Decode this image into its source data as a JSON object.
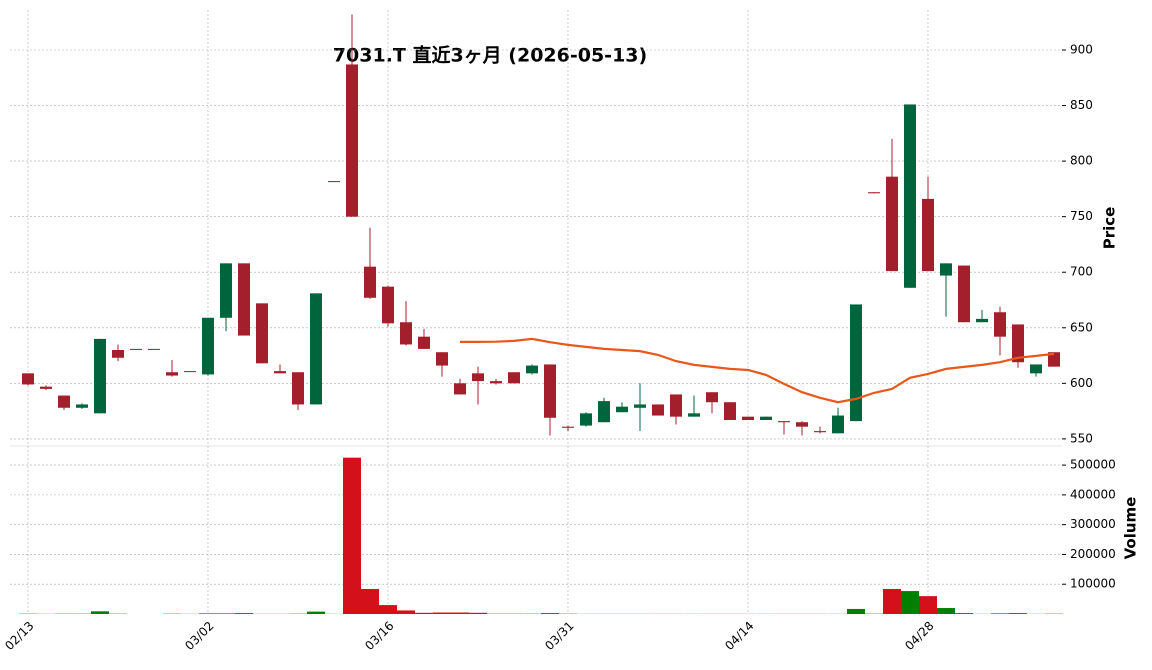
{
  "chart_data": {
    "type": "candlestick",
    "title": "7031.T  直近3ヶ月  (2026-05-13)",
    "ylabel": "Price",
    "categories": [
      "02/13",
      null,
      null,
      null,
      null,
      null,
      null,
      null,
      null,
      null,
      "03/02",
      null,
      null,
      null,
      null,
      null,
      null,
      null,
      null,
      null,
      "03/16",
      null,
      null,
      null,
      null,
      null,
      null,
      null,
      null,
      null,
      "03/31",
      null,
      null,
      null,
      null,
      null,
      null,
      null,
      null,
      null,
      "04/14",
      null,
      null,
      null,
      null,
      null,
      null,
      null,
      null,
      null,
      "04/28",
      null,
      null,
      null,
      null,
      null,
      null,
      null
    ],
    "open": [
      609,
      597,
      589,
      578,
      573,
      630,
      631,
      631,
      610,
      611,
      608,
      659,
      708,
      672,
      611,
      610,
      581,
      782,
      887,
      705,
      687,
      655,
      642,
      628,
      600,
      609,
      602,
      610,
      609,
      617,
      561,
      562,
      565,
      574,
      578,
      581,
      590,
      570,
      592,
      583,
      570,
      567,
      566,
      565,
      557,
      555,
      566,
      772,
      786,
      686,
      766,
      697,
      706,
      655,
      664,
      653,
      609,
      628
    ],
    "high": [
      609,
      598,
      589,
      582,
      640,
      635,
      631,
      631,
      621,
      611,
      659,
      708,
      708,
      672,
      617,
      610,
      681,
      782,
      932,
      740,
      688,
      674,
      649,
      628,
      604,
      615,
      604,
      610,
      617,
      617,
      562,
      574,
      587,
      583,
      600,
      581,
      590,
      589,
      592,
      583,
      570,
      570,
      566,
      566,
      561,
      578,
      671,
      772,
      820,
      851,
      786,
      708,
      706,
      666,
      669,
      653,
      617,
      628
    ],
    "low": [
      598,
      594,
      576,
      577,
      573,
      620,
      631,
      631,
      606,
      611,
      607,
      647,
      643,
      618,
      609,
      576,
      581,
      782,
      750,
      676,
      651,
      634,
      631,
      606,
      590,
      581,
      599,
      600,
      608,
      553,
      557,
      561,
      565,
      574,
      557,
      571,
      563,
      570,
      573,
      567,
      567,
      567,
      554,
      553,
      555,
      555,
      566,
      771,
      701,
      686,
      701,
      660,
      655,
      655,
      625,
      614,
      606,
      615
    ],
    "close": [
      599,
      595,
      578,
      581,
      640,
      623,
      631,
      631,
      607,
      611,
      659,
      708,
      643,
      618,
      609,
      581,
      681,
      782,
      750,
      677,
      654,
      635,
      631,
      616,
      590,
      602,
      600,
      600,
      616,
      569,
      560,
      573,
      584,
      579,
      581,
      571,
      570,
      573,
      583,
      567,
      567,
      570,
      565,
      561,
      556,
      571,
      671,
      771,
      701,
      851,
      701,
      708,
      655,
      658,
      642,
      619,
      617,
      615
    ],
    "up_color": "#00643c",
    "down_color": "#a41f2c",
    "moving_average": {
      "color": "#e8581a",
      "values": [
        null,
        null,
        null,
        null,
        null,
        null,
        null,
        null,
        null,
        null,
        null,
        null,
        null,
        null,
        null,
        null,
        null,
        null,
        null,
        null,
        null,
        null,
        null,
        null,
        637.3,
        637.3,
        637.5,
        638.2,
        640,
        637,
        634.6,
        632.8,
        631,
        630,
        629,
        625.6,
        620,
        616.6,
        614.8,
        613,
        612,
        607.6,
        599.5,
        592,
        587,
        583,
        586,
        591.4,
        595,
        605,
        608.5,
        613,
        614.8,
        616.6,
        619,
        623,
        624.7,
        626.5
      ]
    },
    "ylim": [
      549,
      936
    ],
    "yticks": [
      550,
      600,
      650,
      700,
      750,
      800,
      850,
      900
    ],
    "grid": true,
    "volume": {
      "ylabel": "Volume",
      "ylim": [
        0,
        544000
      ],
      "yticks": [
        100000,
        200000,
        300000,
        400000,
        500000
      ],
      "up_color": "#007f00",
      "down_color": "#d4101a",
      "values": [
        1000,
        500,
        1000,
        1000,
        9000,
        1000,
        0,
        0,
        1000,
        500,
        2000,
        2000,
        3000,
        500,
        500,
        1000,
        8000,
        500,
        525000,
        84000,
        30000,
        12000,
        4000,
        5000,
        5000,
        4000,
        1000,
        1000,
        1000,
        3000,
        1000,
        500,
        500,
        500,
        500,
        500,
        500,
        500,
        500,
        500,
        500,
        500,
        500,
        500,
        500,
        500,
        17000,
        1000,
        84000,
        77000,
        60000,
        20000,
        3000,
        500,
        2000,
        3000,
        500,
        1000
      ]
    }
  }
}
